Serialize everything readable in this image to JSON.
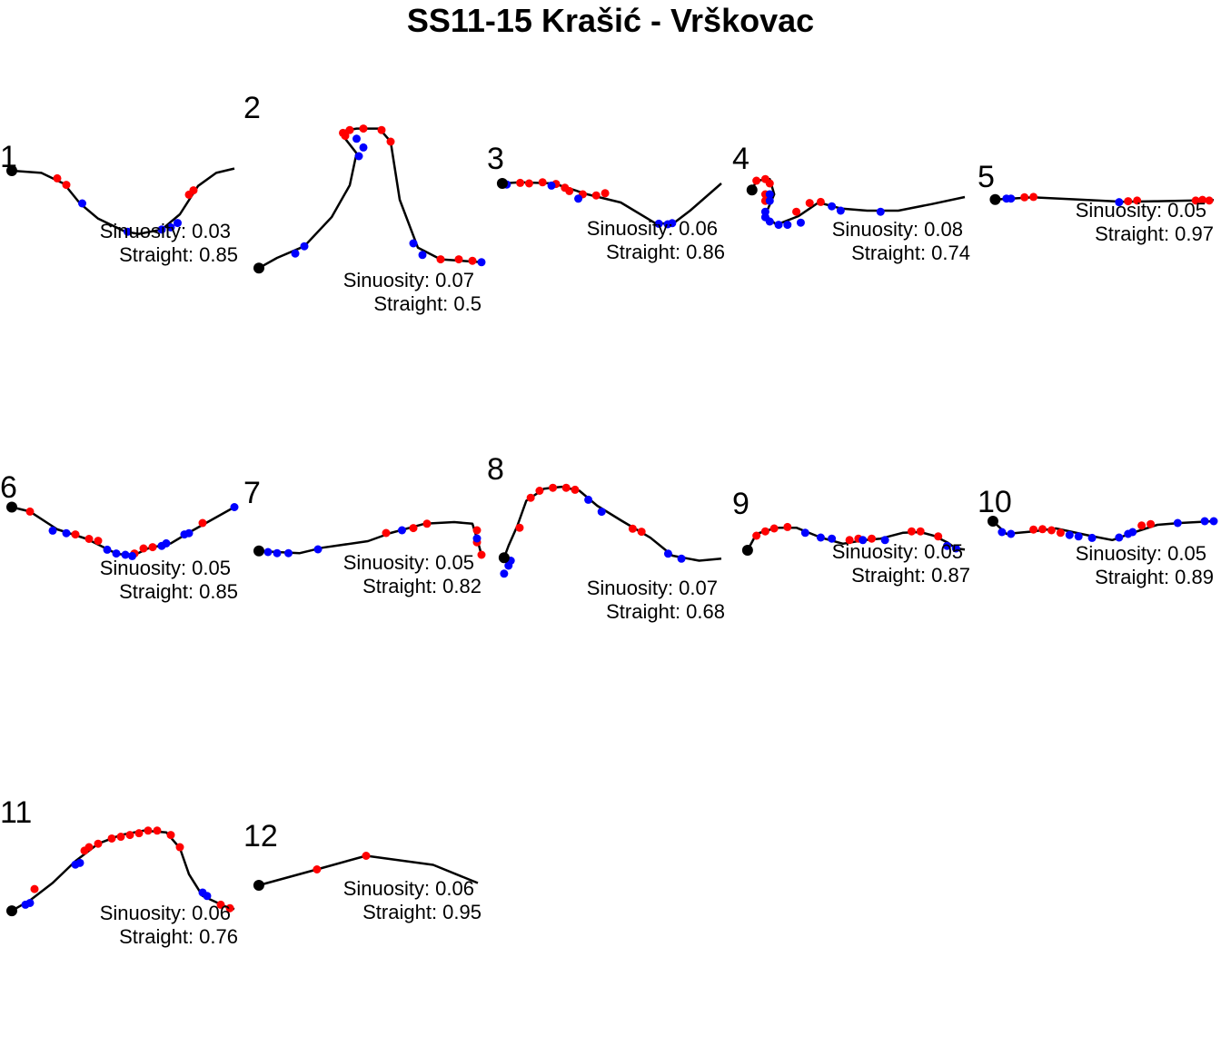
{
  "title": "SS11-15 Krašić - Vrškovac",
  "colors": {
    "path": "#000000",
    "above": "#ff0000",
    "below": "#0000ff",
    "start": "#000000"
  },
  "labels": {
    "sinuosity_prefix": "Sinuosity: ",
    "straight_prefix": "Straight: "
  },
  "chart_data": [
    {
      "type": "line",
      "stage": "1",
      "sinuosity": "0.03",
      "straight": "0.85",
      "path": [
        [
          0.02,
          0.4
        ],
        [
          0.15,
          0.42
        ],
        [
          0.25,
          0.52
        ],
        [
          0.32,
          0.7
        ],
        [
          0.4,
          0.84
        ],
        [
          0.52,
          0.96
        ],
        [
          0.58,
          0.98
        ],
        [
          0.68,
          0.94
        ],
        [
          0.76,
          0.8
        ],
        [
          0.84,
          0.54
        ],
        [
          0.92,
          0.42
        ],
        [
          1.0,
          0.38
        ]
      ],
      "red": [
        [
          0.22,
          0.47
        ],
        [
          0.26,
          0.53
        ],
        [
          0.82,
          0.58
        ],
        [
          0.8,
          0.62
        ]
      ],
      "blue": [
        [
          0.02,
          0.4
        ],
        [
          0.33,
          0.7
        ],
        [
          0.53,
          0.96
        ],
        [
          0.68,
          0.94
        ],
        [
          0.72,
          0.92
        ],
        [
          0.75,
          0.88
        ]
      ]
    },
    {
      "type": "line",
      "stage": "2",
      "sinuosity": "0.07",
      "straight": "0.5",
      "path": [
        [
          0.02,
          0.97
        ],
        [
          0.1,
          0.9
        ],
        [
          0.22,
          0.82
        ],
        [
          0.34,
          0.62
        ],
        [
          0.42,
          0.4
        ],
        [
          0.45,
          0.18
        ],
        [
          0.4,
          0.08
        ],
        [
          0.38,
          0.03
        ],
        [
          0.45,
          0.01
        ],
        [
          0.55,
          0.01
        ],
        [
          0.6,
          0.1
        ],
        [
          0.64,
          0.5
        ],
        [
          0.72,
          0.83
        ],
        [
          0.82,
          0.91
        ],
        [
          1.0,
          0.93
        ]
      ],
      "red": [
        [
          0.39,
          0.04
        ],
        [
          0.4,
          0.06
        ],
        [
          0.42,
          0.02
        ],
        [
          0.48,
          0.01
        ],
        [
          0.56,
          0.02
        ],
        [
          0.6,
          0.1
        ],
        [
          0.82,
          0.91
        ],
        [
          0.9,
          0.91
        ],
        [
          0.96,
          0.92
        ]
      ],
      "blue": [
        [
          0.02,
          0.97
        ],
        [
          0.18,
          0.87
        ],
        [
          0.22,
          0.82
        ],
        [
          0.46,
          0.2
        ],
        [
          0.48,
          0.14
        ],
        [
          0.45,
          0.08
        ],
        [
          0.7,
          0.8
        ],
        [
          0.74,
          0.88
        ],
        [
          1.0,
          0.93
        ]
      ]
    },
    {
      "type": "line",
      "stage": "3",
      "sinuosity": "0.06",
      "straight": "0.86",
      "path": [
        [
          0.02,
          0.2
        ],
        [
          0.1,
          0.18
        ],
        [
          0.25,
          0.2
        ],
        [
          0.4,
          0.4
        ],
        [
          0.55,
          0.55
        ],
        [
          0.7,
          0.92
        ],
        [
          0.78,
          0.95
        ],
        [
          0.86,
          0.7
        ],
        [
          1.0,
          0.2
        ]
      ],
      "red": [
        [
          0.1,
          0.19
        ],
        [
          0.14,
          0.2
        ],
        [
          0.2,
          0.18
        ],
        [
          0.26,
          0.21
        ],
        [
          0.3,
          0.28
        ],
        [
          0.32,
          0.34
        ],
        [
          0.38,
          0.4
        ],
        [
          0.44,
          0.42
        ],
        [
          0.48,
          0.38
        ]
      ],
      "blue": [
        [
          0.02,
          0.2
        ],
        [
          0.04,
          0.22
        ],
        [
          0.24,
          0.24
        ],
        [
          0.36,
          0.48
        ],
        [
          0.72,
          0.94
        ],
        [
          0.76,
          0.95
        ],
        [
          0.78,
          0.93
        ]
      ]
    },
    {
      "type": "line",
      "stage": "4",
      "sinuosity": "0.08",
      "straight": "0.74",
      "path": [
        [
          0.04,
          0.32
        ],
        [
          0.06,
          0.15
        ],
        [
          0.12,
          0.12
        ],
        [
          0.14,
          0.4
        ],
        [
          0.1,
          0.78
        ],
        [
          0.15,
          0.96
        ],
        [
          0.25,
          0.8
        ],
        [
          0.34,
          0.55
        ],
        [
          0.44,
          0.66
        ],
        [
          0.56,
          0.7
        ],
        [
          0.7,
          0.7
        ],
        [
          0.85,
          0.58
        ],
        [
          1.0,
          0.45
        ]
      ],
      "red": [
        [
          0.04,
          0.32
        ],
        [
          0.06,
          0.15
        ],
        [
          0.1,
          0.12
        ],
        [
          0.12,
          0.2
        ],
        [
          0.1,
          0.4
        ],
        [
          0.1,
          0.52
        ],
        [
          0.24,
          0.72
        ],
        [
          0.3,
          0.56
        ],
        [
          0.35,
          0.54
        ]
      ],
      "blue": [
        [
          0.12,
          0.4
        ],
        [
          0.12,
          0.52
        ],
        [
          0.1,
          0.72
        ],
        [
          0.1,
          0.82
        ],
        [
          0.12,
          0.9
        ],
        [
          0.16,
          0.96
        ],
        [
          0.2,
          0.96
        ],
        [
          0.26,
          0.92
        ],
        [
          0.4,
          0.62
        ],
        [
          0.44,
          0.7
        ],
        [
          0.62,
          0.72
        ]
      ]
    },
    {
      "type": "line",
      "stage": "5",
      "sinuosity": "0.05",
      "straight": "0.97",
      "path": [
        [
          0.03,
          0.55
        ],
        [
          0.1,
          0.52
        ],
        [
          0.2,
          0.48
        ],
        [
          0.4,
          0.55
        ],
        [
          0.6,
          0.62
        ],
        [
          0.75,
          0.6
        ],
        [
          0.9,
          0.58
        ],
        [
          1.0,
          0.56
        ]
      ],
      "red": [
        [
          0.16,
          0.48
        ],
        [
          0.2,
          0.47
        ],
        [
          0.62,
          0.6
        ],
        [
          0.66,
          0.58
        ],
        [
          0.92,
          0.58
        ],
        [
          0.95,
          0.56
        ],
        [
          0.98,
          0.58
        ]
      ],
      "blue": [
        [
          0.03,
          0.55
        ],
        [
          0.08,
          0.52
        ],
        [
          0.1,
          0.52
        ],
        [
          0.58,
          0.63
        ]
      ]
    },
    {
      "type": "line",
      "stage": "6",
      "sinuosity": "0.05",
      "straight": "0.85",
      "path": [
        [
          0.02,
          0.05
        ],
        [
          0.1,
          0.12
        ],
        [
          0.22,
          0.4
        ],
        [
          0.35,
          0.55
        ],
        [
          0.48,
          0.78
        ],
        [
          0.55,
          0.82
        ],
        [
          0.62,
          0.7
        ],
        [
          0.72,
          0.62
        ],
        [
          0.8,
          0.45
        ],
        [
          0.9,
          0.25
        ],
        [
          1.0,
          0.05
        ]
      ],
      "red": [
        [
          0.02,
          0.05
        ],
        [
          0.1,
          0.12
        ],
        [
          0.3,
          0.48
        ],
        [
          0.36,
          0.55
        ],
        [
          0.4,
          0.58
        ],
        [
          0.56,
          0.78
        ],
        [
          0.6,
          0.7
        ],
        [
          0.64,
          0.68
        ],
        [
          0.86,
          0.3
        ]
      ],
      "blue": [
        [
          0.2,
          0.42
        ],
        [
          0.26,
          0.46
        ],
        [
          0.44,
          0.72
        ],
        [
          0.48,
          0.78
        ],
        [
          0.52,
          0.8
        ],
        [
          0.55,
          0.82
        ],
        [
          0.68,
          0.66
        ],
        [
          0.7,
          0.62
        ],
        [
          0.78,
          0.48
        ],
        [
          0.8,
          0.46
        ],
        [
          1.0,
          0.05
        ]
      ]
    },
    {
      "type": "line",
      "stage": "7",
      "sinuosity": "0.05",
      "straight": "0.82",
      "path": [
        [
          0.02,
          0.78
        ],
        [
          0.1,
          0.8
        ],
        [
          0.2,
          0.82
        ],
        [
          0.3,
          0.72
        ],
        [
          0.5,
          0.6
        ],
        [
          0.6,
          0.45
        ],
        [
          0.75,
          0.28
        ],
        [
          0.88,
          0.25
        ],
        [
          0.96,
          0.28
        ],
        [
          0.98,
          0.55
        ],
        [
          1.0,
          0.85
        ]
      ],
      "red": [
        [
          0.58,
          0.45
        ],
        [
          0.7,
          0.36
        ],
        [
          0.76,
          0.28
        ],
        [
          0.98,
          0.4
        ],
        [
          0.98,
          0.62
        ],
        [
          1.0,
          0.85
        ]
      ],
      "blue": [
        [
          0.02,
          0.78
        ],
        [
          0.06,
          0.8
        ],
        [
          0.1,
          0.82
        ],
        [
          0.15,
          0.82
        ],
        [
          0.28,
          0.75
        ],
        [
          0.65,
          0.4
        ],
        [
          0.98,
          0.55
        ]
      ]
    },
    {
      "type": "line",
      "stage": "8",
      "sinuosity": "0.07",
      "straight": "0.68",
      "path": [
        [
          0.02,
          0.72
        ],
        [
          0.04,
          0.6
        ],
        [
          0.08,
          0.4
        ],
        [
          0.12,
          0.15
        ],
        [
          0.2,
          0.03
        ],
        [
          0.28,
          0.01
        ],
        [
          0.36,
          0.05
        ],
        [
          0.44,
          0.2
        ],
        [
          0.55,
          0.35
        ],
        [
          0.68,
          0.52
        ],
        [
          0.78,
          0.7
        ],
        [
          0.9,
          0.75
        ],
        [
          1.0,
          0.73
        ]
      ],
      "red": [
        [
          0.02,
          0.72
        ],
        [
          0.09,
          0.42
        ],
        [
          0.14,
          0.12
        ],
        [
          0.18,
          0.05
        ],
        [
          0.24,
          0.02
        ],
        [
          0.3,
          0.02
        ],
        [
          0.34,
          0.04
        ],
        [
          0.6,
          0.43
        ],
        [
          0.64,
          0.46
        ]
      ],
      "blue": [
        [
          0.02,
          0.88
        ],
        [
          0.04,
          0.8
        ],
        [
          0.05,
          0.75
        ],
        [
          0.4,
          0.14
        ],
        [
          0.46,
          0.26
        ],
        [
          0.76,
          0.68
        ],
        [
          0.82,
          0.73
        ]
      ]
    },
    {
      "type": "line",
      "stage": "9",
      "sinuosity": "0.05",
      "straight": "0.87",
      "path": [
        [
          0.02,
          0.9
        ],
        [
          0.06,
          0.45
        ],
        [
          0.15,
          0.28
        ],
        [
          0.24,
          0.28
        ],
        [
          0.35,
          0.55
        ],
        [
          0.45,
          0.72
        ],
        [
          0.55,
          0.62
        ],
        [
          0.62,
          0.58
        ],
        [
          0.72,
          0.42
        ],
        [
          0.8,
          0.4
        ],
        [
          0.86,
          0.5
        ],
        [
          0.92,
          0.68
        ],
        [
          0.96,
          0.85
        ],
        [
          1.0,
          0.88
        ]
      ],
      "red": [
        [
          0.02,
          0.9
        ],
        [
          0.06,
          0.5
        ],
        [
          0.1,
          0.38
        ],
        [
          0.14,
          0.3
        ],
        [
          0.2,
          0.26
        ],
        [
          0.48,
          0.62
        ],
        [
          0.52,
          0.58
        ],
        [
          0.58,
          0.58
        ],
        [
          0.76,
          0.38
        ],
        [
          0.8,
          0.38
        ],
        [
          0.88,
          0.52
        ]
      ],
      "blue": [
        [
          0.28,
          0.42
        ],
        [
          0.35,
          0.55
        ],
        [
          0.4,
          0.58
        ],
        [
          0.54,
          0.62
        ],
        [
          0.64,
          0.62
        ],
        [
          0.92,
          0.78
        ],
        [
          0.96,
          0.85
        ]
      ]
    },
    {
      "type": "line",
      "stage": "10",
      "sinuosity": "0.05",
      "straight": "0.89",
      "path": [
        [
          0.02,
          0.1
        ],
        [
          0.08,
          0.45
        ],
        [
          0.2,
          0.38
        ],
        [
          0.3,
          0.3
        ],
        [
          0.45,
          0.5
        ],
        [
          0.55,
          0.62
        ],
        [
          0.65,
          0.4
        ],
        [
          0.75,
          0.2
        ],
        [
          0.85,
          0.15
        ],
        [
          1.0,
          0.1
        ]
      ],
      "red": [
        [
          0.2,
          0.33
        ],
        [
          0.24,
          0.32
        ],
        [
          0.28,
          0.35
        ],
        [
          0.32,
          0.42
        ],
        [
          0.68,
          0.22
        ],
        [
          0.72,
          0.18
        ]
      ],
      "blue": [
        [
          0.02,
          0.1
        ],
        [
          0.06,
          0.4
        ],
        [
          0.1,
          0.45
        ],
        [
          0.36,
          0.48
        ],
        [
          0.4,
          0.52
        ],
        [
          0.46,
          0.56
        ],
        [
          0.58,
          0.55
        ],
        [
          0.62,
          0.45
        ],
        [
          0.64,
          0.4
        ],
        [
          0.84,
          0.15
        ],
        [
          0.96,
          0.1
        ],
        [
          1.0,
          0.1
        ]
      ]
    },
    {
      "type": "line",
      "stage": "11",
      "sinuosity": "0.06",
      "straight": "0.76",
      "path": [
        [
          0.02,
          0.97
        ],
        [
          0.1,
          0.85
        ],
        [
          0.2,
          0.65
        ],
        [
          0.3,
          0.4
        ],
        [
          0.4,
          0.2
        ],
        [
          0.5,
          0.1
        ],
        [
          0.6,
          0.05
        ],
        [
          0.7,
          0.07
        ],
        [
          0.76,
          0.25
        ],
        [
          0.8,
          0.55
        ],
        [
          0.86,
          0.8
        ],
        [
          0.96,
          0.92
        ],
        [
          1.0,
          0.95
        ]
      ],
      "red": [
        [
          0.12,
          0.72
        ],
        [
          0.34,
          0.28
        ],
        [
          0.36,
          0.24
        ],
        [
          0.4,
          0.2
        ],
        [
          0.46,
          0.14
        ],
        [
          0.5,
          0.12
        ],
        [
          0.54,
          0.1
        ],
        [
          0.58,
          0.08
        ],
        [
          0.62,
          0.05
        ],
        [
          0.66,
          0.05
        ],
        [
          0.72,
          0.1
        ],
        [
          0.76,
          0.24
        ],
        [
          0.94,
          0.9
        ],
        [
          0.98,
          0.94
        ]
      ],
      "blue": [
        [
          0.02,
          0.97
        ],
        [
          0.08,
          0.9
        ],
        [
          0.1,
          0.88
        ],
        [
          0.3,
          0.44
        ],
        [
          0.32,
          0.42
        ],
        [
          0.86,
          0.76
        ],
        [
          0.88,
          0.8
        ]
      ]
    },
    {
      "type": "line",
      "stage": "12",
      "sinuosity": "0.06",
      "straight": "0.95",
      "path": [
        [
          0.02,
          0.8
        ],
        [
          0.28,
          0.45
        ],
        [
          0.5,
          0.15
        ],
        [
          0.8,
          0.35
        ],
        [
          1.0,
          0.75
        ]
      ],
      "red": [
        [
          0.02,
          0.8
        ],
        [
          0.28,
          0.45
        ],
        [
          0.5,
          0.15
        ]
      ],
      "blue": []
    }
  ]
}
